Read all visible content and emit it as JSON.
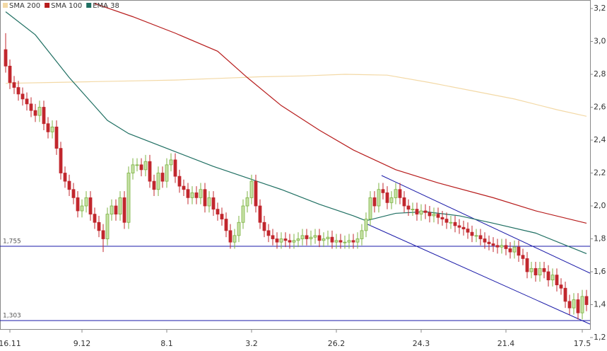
{
  "chart_data": {
    "type": "candlestick",
    "open": [
      2.95,
      2.85,
      2.75,
      2.72,
      2.68,
      2.65,
      2.62,
      2.58,
      2.55,
      2.6,
      2.5,
      2.45,
      2.48,
      2.35,
      2.2,
      2.15,
      2.1,
      2.05,
      1.97,
      2.0,
      2.05,
      1.95,
      1.9,
      1.85,
      1.8,
      1.95,
      2.0,
      1.95,
      2.05,
      1.9,
      2.2,
      2.25,
      2.25,
      2.22,
      2.27,
      2.15,
      2.1,
      2.2,
      2.15,
      2.25,
      2.28,
      2.18,
      2.12,
      2.1,
      2.05,
      2.08,
      2.05,
      2.1,
      2.0,
      2.05,
      1.98,
      1.95,
      1.92,
      1.85,
      1.78,
      1.82,
      1.9,
      2.0,
      2.05,
      2.15,
      2.0,
      1.9,
      1.85,
      1.82,
      1.8,
      1.78,
      1.8,
      1.79,
      1.78,
      1.79,
      1.8,
      1.82,
      1.8,
      1.81,
      1.82,
      1.79,
      1.8,
      1.81,
      1.78,
      1.79,
      1.78,
      1.78,
      1.79,
      1.78,
      1.8,
      1.85,
      1.92,
      2.05,
      2.0,
      2.1,
      2.08,
      2.02,
      2.05,
      2.1,
      2.05,
      2.0,
      1.98,
      1.98,
      1.95,
      1.97,
      1.96,
      1.94,
      1.95,
      1.93,
      1.92,
      1.9,
      1.9,
      1.88,
      1.87,
      1.86,
      1.84,
      1.82,
      1.82,
      1.8,
      1.78,
      1.77,
      1.76,
      1.75,
      1.76,
      1.74,
      1.72,
      1.75,
      1.7,
      1.68,
      1.6,
      1.62,
      1.58,
      1.62,
      1.6,
      1.55,
      1.58,
      1.52,
      1.5,
      1.42,
      1.38,
      1.43,
      1.35,
      1.45
    ],
    "high": [
      3.05,
      2.89,
      2.79,
      2.76,
      2.72,
      2.69,
      2.66,
      2.62,
      2.64,
      2.64,
      2.54,
      2.52,
      2.52,
      2.39,
      2.24,
      2.19,
      2.14,
      2.09,
      2.04,
      2.09,
      2.09,
      1.99,
      1.94,
      1.89,
      1.99,
      2.04,
      2.04,
      2.09,
      2.09,
      2.24,
      2.29,
      2.29,
      2.29,
      2.31,
      2.31,
      2.19,
      2.24,
      2.24,
      2.29,
      2.32,
      2.32,
      2.22,
      2.16,
      2.14,
      2.12,
      2.12,
      2.14,
      2.14,
      2.09,
      2.09,
      2.02,
      1.99,
      1.96,
      1.89,
      1.86,
      1.94,
      2.04,
      2.09,
      2.19,
      2.19,
      2.04,
      1.94,
      1.89,
      1.86,
      1.84,
      1.84,
      1.84,
      1.83,
      1.83,
      1.84,
      1.86,
      1.86,
      1.85,
      1.86,
      1.86,
      1.84,
      1.85,
      1.85,
      1.83,
      1.83,
      1.82,
      1.83,
      1.83,
      1.84,
      1.89,
      1.96,
      2.09,
      2.09,
      2.14,
      2.14,
      2.12,
      2.09,
      2.14,
      2.14,
      2.09,
      2.04,
      2.02,
      2.02,
      2.01,
      2.01,
      2.0,
      1.99,
      1.99,
      1.97,
      1.96,
      1.94,
      1.94,
      1.92,
      1.91,
      1.9,
      1.88,
      1.86,
      1.86,
      1.84,
      1.82,
      1.81,
      1.8,
      1.8,
      1.8,
      1.78,
      1.79,
      1.79,
      1.74,
      1.72,
      1.66,
      1.66,
      1.66,
      1.66,
      1.64,
      1.62,
      1.62,
      1.56,
      1.54,
      1.46,
      1.47,
      1.47,
      1.49,
      1.49
    ],
    "low": [
      2.81,
      2.71,
      2.68,
      2.64,
      2.61,
      2.58,
      2.54,
      2.51,
      2.51,
      2.46,
      2.41,
      2.41,
      2.31,
      2.16,
      2.11,
      2.06,
      2.01,
      1.93,
      1.93,
      1.96,
      1.91,
      1.86,
      1.81,
      1.72,
      1.76,
      1.91,
      1.91,
      1.91,
      1.86,
      1.86,
      2.16,
      2.21,
      2.18,
      2.18,
      2.11,
      2.06,
      2.06,
      2.11,
      2.11,
      2.21,
      2.14,
      2.08,
      2.06,
      2.01,
      2.01,
      2.01,
      2.01,
      1.96,
      1.96,
      1.94,
      1.91,
      1.88,
      1.81,
      1.74,
      1.74,
      1.78,
      1.86,
      1.96,
      2.01,
      1.96,
      1.86,
      1.81,
      1.78,
      1.76,
      1.74,
      1.74,
      1.75,
      1.74,
      1.74,
      1.75,
      1.76,
      1.76,
      1.76,
      1.77,
      1.75,
      1.75,
      1.76,
      1.74,
      1.74,
      1.74,
      1.74,
      1.74,
      1.74,
      1.74,
      1.76,
      1.81,
      1.88,
      1.96,
      1.96,
      2.04,
      1.98,
      1.98,
      2.01,
      2.01,
      1.96,
      1.94,
      1.94,
      1.91,
      1.91,
      1.92,
      1.9,
      1.9,
      1.89,
      1.88,
      1.86,
      1.86,
      1.84,
      1.83,
      1.82,
      1.8,
      1.78,
      1.78,
      1.76,
      1.74,
      1.73,
      1.72,
      1.71,
      1.71,
      1.7,
      1.68,
      1.68,
      1.66,
      1.64,
      1.56,
      1.56,
      1.54,
      1.54,
      1.56,
      1.51,
      1.51,
      1.48,
      1.46,
      1.38,
      1.34,
      1.34,
      1.31,
      1.31,
      1.36
    ],
    "close": [
      2.85,
      2.75,
      2.72,
      2.68,
      2.65,
      2.62,
      2.58,
      2.55,
      2.6,
      2.5,
      2.45,
      2.48,
      2.35,
      2.2,
      2.15,
      2.1,
      2.05,
      1.97,
      2.0,
      2.05,
      1.95,
      1.9,
      1.85,
      1.8,
      1.95,
      2.0,
      1.95,
      2.05,
      1.9,
      2.2,
      2.25,
      2.25,
      2.22,
      2.27,
      2.15,
      2.1,
      2.2,
      2.15,
      2.25,
      2.28,
      2.18,
      2.12,
      2.1,
      2.05,
      2.08,
      2.05,
      2.1,
      2.0,
      2.05,
      1.98,
      1.95,
      1.92,
      1.85,
      1.78,
      1.82,
      1.9,
      2.0,
      2.05,
      2.15,
      2.0,
      1.9,
      1.85,
      1.82,
      1.8,
      1.78,
      1.8,
      1.79,
      1.78,
      1.79,
      1.8,
      1.82,
      1.8,
      1.81,
      1.82,
      1.79,
      1.8,
      1.81,
      1.78,
      1.79,
      1.78,
      1.78,
      1.79,
      1.78,
      1.8,
      1.85,
      1.92,
      2.05,
      2.0,
      2.1,
      2.08,
      2.02,
      2.05,
      2.1,
      2.05,
      2.0,
      1.98,
      1.98,
      1.95,
      1.97,
      1.96,
      1.94,
      1.95,
      1.93,
      1.92,
      1.9,
      1.9,
      1.88,
      1.87,
      1.86,
      1.84,
      1.82,
      1.82,
      1.8,
      1.78,
      1.77,
      1.76,
      1.75,
      1.76,
      1.74,
      1.72,
      1.75,
      1.7,
      1.68,
      1.6,
      1.62,
      1.58,
      1.62,
      1.6,
      1.55,
      1.58,
      1.52,
      1.5,
      1.42,
      1.38,
      1.43,
      1.35,
      1.45,
      1.4
    ],
    "up_color": "#7cb342",
    "down_color": "#c1272d",
    "series": [
      {
        "name": "SMA 200",
        "color": "#f3d9a6",
        "x": [
          0,
          10,
          20,
          30,
          40,
          50,
          60,
          70,
          80,
          90,
          100,
          110,
          120,
          130,
          137
        ],
        "values": [
          2.745,
          2.75,
          2.755,
          2.76,
          2.765,
          2.775,
          2.785,
          2.79,
          2.8,
          2.795,
          2.75,
          2.7,
          2.65,
          2.585,
          2.545
        ]
      },
      {
        "name": "SMA 100",
        "color": "#b71c1c",
        "x": [
          21,
          30,
          40,
          50,
          57,
          65,
          74,
          82,
          92,
          102,
          115,
          125,
          137
        ],
        "values": [
          3.23,
          3.15,
          3.05,
          2.94,
          2.78,
          2.61,
          2.46,
          2.34,
          2.22,
          2.14,
          2.05,
          1.97,
          1.895
        ]
      },
      {
        "name": "EMA 38",
        "color": "#1f6f62",
        "x": [
          0,
          7,
          15,
          24,
          29,
          40,
          49,
          57,
          65,
          74,
          82,
          85,
          92,
          99,
          107,
          115,
          125,
          137
        ],
        "values": [
          3.18,
          3.04,
          2.78,
          2.52,
          2.44,
          2.33,
          2.24,
          2.17,
          2.1,
          2.01,
          1.94,
          1.91,
          1.955,
          1.965,
          1.94,
          1.895,
          1.835,
          1.71
        ]
      }
    ],
    "levels": [
      {
        "value": 1.755,
        "label": "1,755"
      },
      {
        "value": 1.303,
        "label": "1,303"
      }
    ],
    "level_color": "#1a1aa8",
    "ylim": [
      1.2,
      3.2
    ],
    "yticks": [
      {
        "value": 1.2,
        "label": "1,2"
      },
      {
        "value": 1.4,
        "label": "1,4"
      },
      {
        "value": 1.6,
        "label": "1,6"
      },
      {
        "value": 1.8,
        "label": "1,8"
      },
      {
        "value": 2.0,
        "label": "2,0"
      },
      {
        "value": 2.2,
        "label": "2,2"
      },
      {
        "value": 2.4,
        "label": "2,4"
      },
      {
        "value": 2.6,
        "label": "2,6"
      },
      {
        "value": 2.8,
        "label": "2,8"
      },
      {
        "value": 3.0,
        "label": "3,0"
      },
      {
        "value": 3.2,
        "label": "3,2"
      }
    ],
    "xticks": [
      {
        "value": 1,
        "label": "16.11"
      },
      {
        "value": 18,
        "label": "9.12"
      },
      {
        "value": 38,
        "label": "8.1"
      },
      {
        "value": 58,
        "label": "3.2"
      },
      {
        "value": 78,
        "label": "26.2"
      },
      {
        "value": 98,
        "label": "24.3"
      },
      {
        "value": 118,
        "label": "21.4"
      },
      {
        "value": 136,
        "label": "17.5"
      }
    ]
  }
}
